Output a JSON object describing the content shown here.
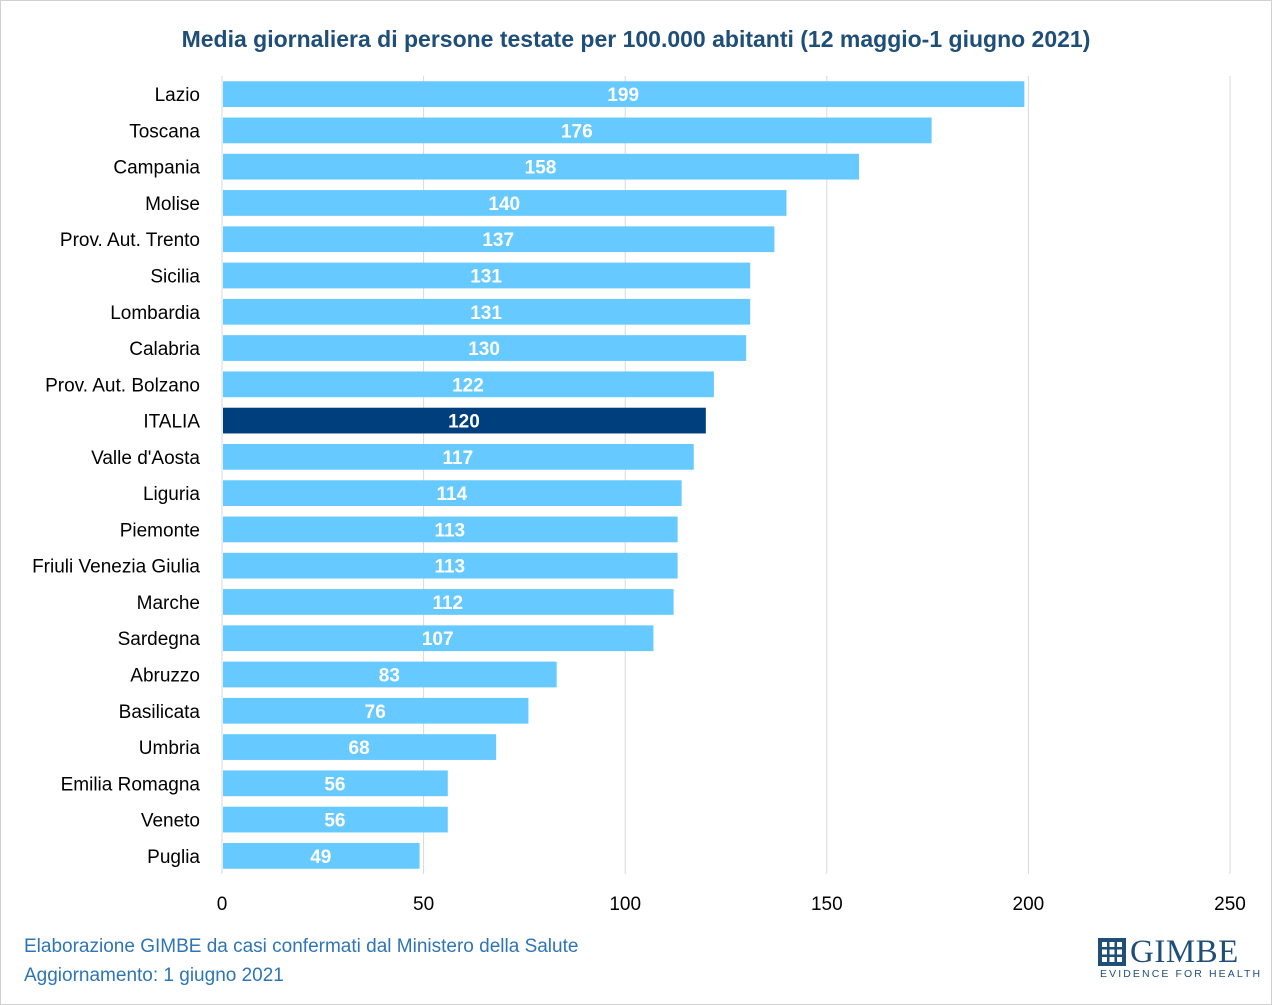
{
  "chart_data": {
    "type": "bar",
    "orientation": "horizontal",
    "title": "Media giornaliera di persone testate per 100.000 abitanti (12 maggio-1 giugno 2021)",
    "categories": [
      "Lazio",
      "Toscana",
      "Campania",
      "Molise",
      "Prov. Aut. Trento",
      "Sicilia",
      "Lombardia",
      "Calabria",
      "Prov. Aut. Bolzano",
      "ITALIA",
      "Valle d'Aosta",
      "Liguria",
      "Piemonte",
      "Friuli Venezia Giulia",
      "Marche",
      "Sardegna",
      "Abruzzo",
      "Basilicata",
      "Umbria",
      "Emilia Romagna",
      "Veneto",
      "Puglia"
    ],
    "values": [
      199,
      176,
      158,
      140,
      137,
      131,
      131,
      130,
      122,
      120,
      117,
      114,
      113,
      113,
      112,
      107,
      83,
      76,
      68,
      56,
      56,
      49
    ],
    "data_labels": [
      "199",
      "176",
      "158",
      "140",
      "137",
      "131",
      "131",
      "130",
      "122",
      "120",
      "117",
      "114",
      "113",
      "113",
      "112",
      "107",
      "83",
      "76",
      "68",
      "56",
      "56",
      "49"
    ],
    "highlight_category": "ITALIA",
    "xlim": [
      0,
      250
    ],
    "xticks": [
      0,
      50,
      100,
      150,
      200,
      250
    ],
    "xlabel": "",
    "ylabel": "",
    "grid": true,
    "legend": "none",
    "colors": {
      "bar": "#66c9ff",
      "highlight": "#003f7d",
      "data_label": "#ffffff",
      "title": "#1f4e79",
      "footer": "#2e75b6",
      "grid": "#d9d9d9"
    }
  },
  "footer": {
    "line1": "Elaborazione GIMBE da casi confermati dal Ministero della Salute",
    "line2": "Aggiornamento: 1 giugno 2021"
  },
  "logo": {
    "word": "GIMBE",
    "tagline": "EVIDENCE FOR HEALTH",
    "icon": "grid-logo-icon"
  }
}
